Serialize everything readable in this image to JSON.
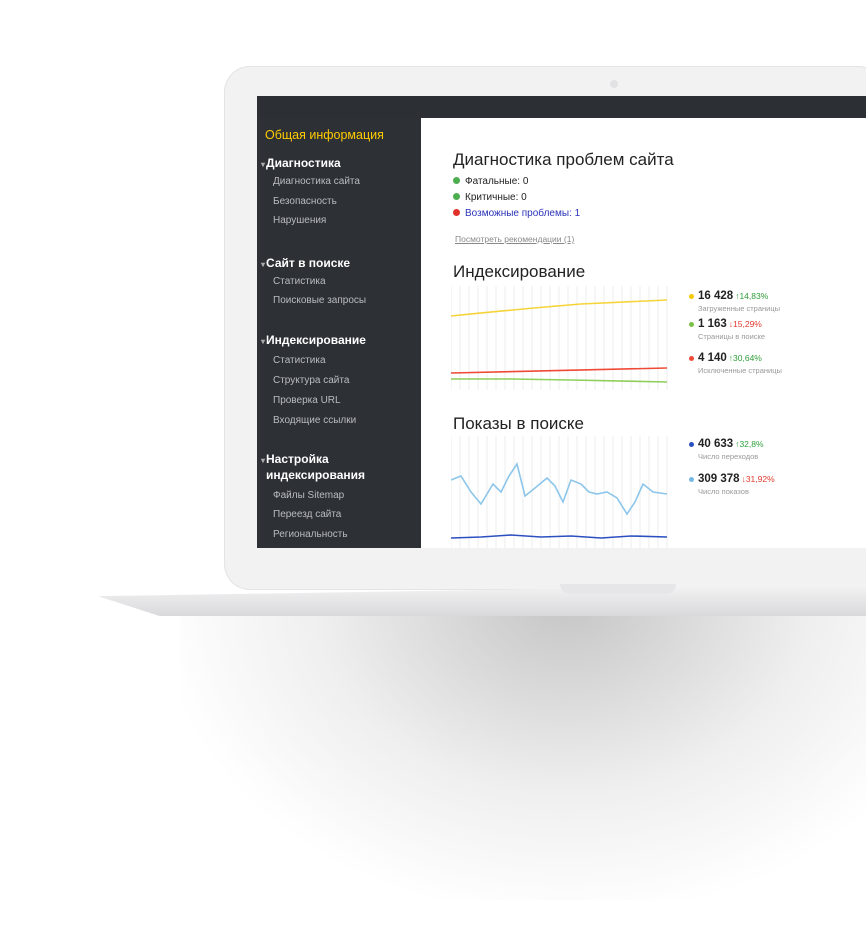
{
  "sidebar": {
    "title": "Общая информация",
    "groups": [
      {
        "label": "Диагностика",
        "items": [
          "Диагностика сайта",
          "Безопасность",
          "Нарушения"
        ]
      },
      {
        "label": "Сайт в поиске",
        "items": [
          "Статистика",
          "Поисковые запросы"
        ]
      },
      {
        "label": "Индексирование",
        "items": [
          "Статистика",
          "Структура сайта",
          "Проверка URL",
          "Входящие ссылки"
        ]
      },
      {
        "label_line1": "Настройка",
        "label_line2": "индексирования",
        "items": [
          "Файлы Sitemap",
          "Переезд сайта",
          "Региональность"
        ]
      }
    ]
  },
  "main": {
    "diagnostics": {
      "title": "Диагностика проблем сайта",
      "fatal": "Фатальные: 0",
      "critical": "Критичные: 0",
      "possible": "Возможные проблемы: 1",
      "link": "Посмотреть рекомендации (1)"
    },
    "indexing": {
      "title": "Индексирование",
      "legend": [
        {
          "value": "16 428",
          "change": "↑14,83%",
          "label": "Загруженные страницы",
          "color": "#f5c800",
          "trend": "up"
        },
        {
          "value": "1 163",
          "change": "↓15,29%",
          "label": "Страницы в поиске",
          "color": "#7bc043",
          "trend": "down"
        },
        {
          "value": "4 140",
          "change": "↑30,64%",
          "label": "Исключенные страницы",
          "color": "#ef4a36",
          "trend": "up"
        }
      ]
    },
    "impressions": {
      "title": "Показы в поиске",
      "legend": [
        {
          "value": "40 633",
          "change": "↑32,8%",
          "label": "Число переходов",
          "color": "#2c4fc0",
          "trend": "up"
        },
        {
          "value": "309 378",
          "change": "↓31,92%",
          "label": "Число показов",
          "color": "#74b9e6",
          "trend": "down"
        }
      ]
    }
  },
  "colors": {
    "accent": "#ffcc00",
    "sidebar_bg": "#2d3035",
    "yellow_line": "#f5d43a",
    "green_line": "#8fce5b",
    "red_line": "#ef4a36",
    "blue_dark": "#2c4fc0",
    "blue_light": "#8cc6ea"
  }
}
